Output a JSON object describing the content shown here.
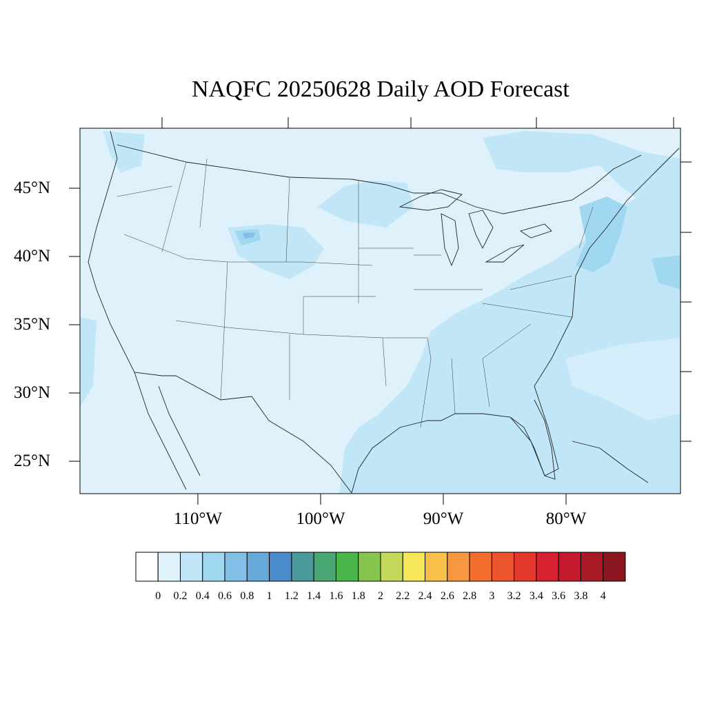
{
  "title": "NAQFC 20250628 Daily AOD Forecast",
  "map": {
    "variable": "AOD",
    "region": "Continental United States",
    "lat_labels": [
      "45°N",
      "40°N",
      "35°N",
      "30°N",
      "25°N"
    ],
    "lon_labels": [
      "110°W",
      "100°W",
      "90°W",
      "80°W"
    ],
    "background_color": "#dff2fb",
    "hotspots": [
      {
        "region": "Northern Plains / Dakotas",
        "aod_range": "0.2-0.4"
      },
      {
        "region": "Wyoming / Colorado front range",
        "aod_range": "0.2-0.6"
      },
      {
        "region": "Southeast US and Gulf Coast",
        "aod_range": "0.2-0.4"
      },
      {
        "region": "Northeast US / New England coast",
        "aod_range": "0.4-0.6"
      },
      {
        "region": "Western Atlantic",
        "aod_range": "0.2-0.6"
      }
    ]
  },
  "colorbar": {
    "labels": [
      "0",
      "0.2",
      "0.4",
      "0.6",
      "0.8",
      "1",
      "1.2",
      "1.4",
      "1.6",
      "1.8",
      "2",
      "2.2",
      "2.4",
      "2.6",
      "2.8",
      "3",
      "3.2",
      "3.4",
      "3.6",
      "3.8",
      "4"
    ],
    "colors": [
      "#ffffff",
      "#dff2fb",
      "#c0e6f7",
      "#a0d8f2",
      "#82bfe6",
      "#66a8da",
      "#4a8ccb",
      "#4a9a9c",
      "#4aa673",
      "#4ab64a",
      "#86c64f",
      "#c4d85a",
      "#f7e65a",
      "#f7c04a",
      "#f79840",
      "#f36e2c",
      "#eb542c",
      "#e3382c",
      "#d72030",
      "#c41a2c",
      "#a81a24",
      "#8c1620"
    ]
  }
}
